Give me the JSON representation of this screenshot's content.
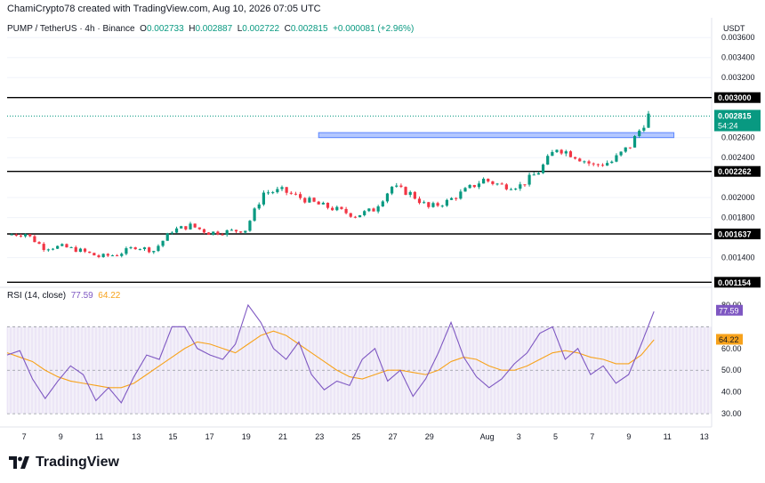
{
  "header": {
    "credit": "ChamiCrypto78 created with TradingView.com, Aug 10, 2026 07:05 UTC",
    "symbol": "PUMP / TetherUS · 4h · Binance",
    "o_label": "O",
    "o_value": "0.002733",
    "h_label": "H",
    "h_value": "0.002887",
    "l_label": "L",
    "l_value": "0.002722",
    "c_label": "C",
    "c_value": "0.002815",
    "change": "+0.000081 (+2.96%)",
    "currency": "USDT"
  },
  "colors": {
    "up": "#089981",
    "down": "#f23645",
    "rsi": "#7e57c2",
    "rsi_ma": "#f7a21b",
    "zone": "#2962ff",
    "level": "#000000",
    "grid": "#f0f3fa"
  },
  "footer": {
    "brand": "TradingView"
  },
  "chart_data": [
    {
      "type": "candlestick",
      "title": "PUMP / TetherUS · 4h · Binance",
      "ylabel": "USDT",
      "ylim": [
        0.00113,
        0.00362
      ],
      "y_ticks": [
        "0.003600",
        "0.003400",
        "0.003200",
        "0.002600",
        "0.002400",
        "0.002000",
        "0.001800",
        "0.001400"
      ],
      "x_ticks": [
        "7",
        "9",
        "11",
        "13",
        "15",
        "17",
        "19",
        "21",
        "23",
        "25",
        "27",
        "29",
        "Aug",
        "3",
        "5",
        "7",
        "9",
        "11",
        "13"
      ],
      "levels": [
        {
          "label": "0.003000",
          "value": 0.003
        },
        {
          "label": "0.002262",
          "value": 0.002262
        },
        {
          "label": "0.001637",
          "value": 0.001637
        },
        {
          "label": "0.001154",
          "value": 0.001154
        }
      ],
      "zone": {
        "low": 0.0026,
        "high": 0.00265,
        "from": "Jul 23",
        "to": "Aug 11"
      },
      "last_price": {
        "label": "0.002815",
        "countdown": "54:24",
        "value": 0.002815
      },
      "close_path": [
        {
          "date": "Jul 6",
          "close": 0.00163
        },
        {
          "date": "Jul 7",
          "close": 0.00164
        },
        {
          "date": "Jul 8",
          "close": 0.0015
        },
        {
          "date": "Jul 9",
          "close": 0.00151
        },
        {
          "date": "Jul 10",
          "close": 0.00147
        },
        {
          "date": "Jul 11",
          "close": 0.00141
        },
        {
          "date": "Jul 12",
          "close": 0.00143
        },
        {
          "date": "Jul 13",
          "close": 0.00151
        },
        {
          "date": "Jul 14",
          "close": 0.00147
        },
        {
          "date": "Jul 15",
          "close": 0.00167
        },
        {
          "date": "Jul 16",
          "close": 0.00172
        },
        {
          "date": "Jul 17",
          "close": 0.00165
        },
        {
          "date": "Jul 18",
          "close": 0.00166
        },
        {
          "date": "Jul 19",
          "close": 0.00168
        },
        {
          "date": "Jul 20",
          "close": 0.00205
        },
        {
          "date": "Jul 21",
          "close": 0.00207
        },
        {
          "date": "Jul 22",
          "close": 0.002
        },
        {
          "date": "Jul 23",
          "close": 0.00193
        },
        {
          "date": "Jul 24",
          "close": 0.00188
        },
        {
          "date": "Jul 25",
          "close": 0.00182
        },
        {
          "date": "Jul 26",
          "close": 0.00188
        },
        {
          "date": "Jul 27",
          "close": 0.00211
        },
        {
          "date": "Jul 28",
          "close": 0.00204
        },
        {
          "date": "Jul 29",
          "close": 0.0019
        },
        {
          "date": "Jul 30",
          "close": 0.00196
        },
        {
          "date": "Jul 31",
          "close": 0.00207
        },
        {
          "date": "Aug 1",
          "close": 0.00218
        },
        {
          "date": "Aug 2",
          "close": 0.00212
        },
        {
          "date": "Aug 3",
          "close": 0.00212
        },
        {
          "date": "Aug 4",
          "close": 0.00226
        },
        {
          "date": "Aug 5",
          "close": 0.0025
        },
        {
          "date": "Aug 6",
          "close": 0.00242
        },
        {
          "date": "Aug 7",
          "close": 0.00232
        },
        {
          "date": "Aug 8",
          "close": 0.00236
        },
        {
          "date": "Aug 9",
          "close": 0.00252
        },
        {
          "date": "Aug 10",
          "close": 0.00282
        }
      ]
    },
    {
      "type": "line",
      "title": "RSI (14, close)",
      "legend": {
        "label": "RSI (14, close)",
        "rsi_value": "77.59",
        "ma_value": "64.22"
      },
      "ylim": [
        28,
        82
      ],
      "y_ticks": [
        "80.00",
        "60.00",
        "50.00",
        "40.00",
        "30.00"
      ],
      "band": {
        "low": 30,
        "high": 70
      },
      "series": [
        {
          "values": [
            57,
            59,
            46,
            37,
            45,
            52,
            48,
            36,
            42,
            35,
            47,
            57,
            55,
            70,
            70,
            60,
            57,
            55,
            62,
            80,
            72,
            60,
            55,
            63,
            48,
            41,
            45,
            43,
            55,
            60,
            45,
            50,
            38,
            46,
            58,
            72,
            56,
            47,
            42,
            46,
            53,
            58,
            67,
            70,
            55,
            60,
            48,
            52,
            44,
            48,
            62,
            77
          ]
        },
        {
          "values": [
            58,
            56,
            54,
            50,
            47,
            45,
            44,
            43,
            42,
            42,
            44,
            48,
            52,
            56,
            60,
            63,
            62,
            60,
            58,
            62,
            66,
            68,
            66,
            62,
            58,
            54,
            50,
            47,
            46,
            48,
            50,
            50,
            49,
            48,
            50,
            54,
            56,
            55,
            52,
            50,
            50,
            52,
            55,
            58,
            59,
            58,
            56,
            55,
            53,
            53,
            57,
            64
          ]
        }
      ]
    }
  ]
}
